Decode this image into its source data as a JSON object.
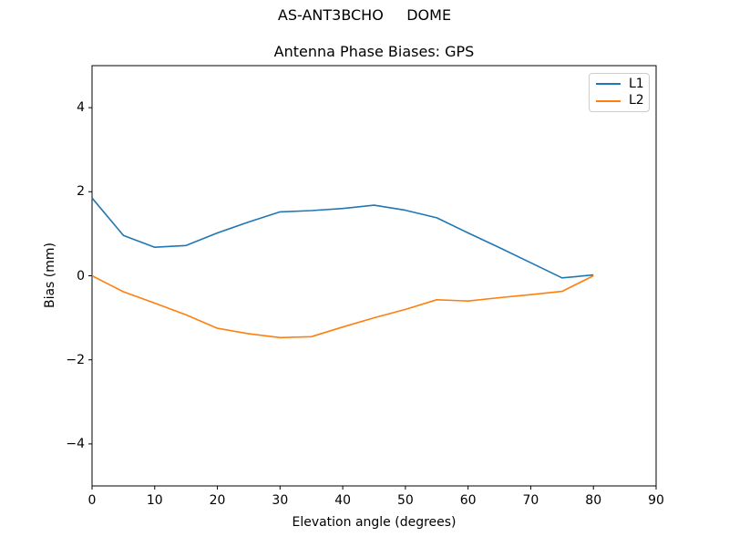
{
  "chart_data": {
    "type": "line",
    "suptitle": "AS-ANT3BCHO     DOME",
    "title": "Antenna Phase Biases: GPS",
    "xlabel": "Elevation angle (degrees)",
    "ylabel": "Bias (mm)",
    "xlim": [
      0,
      90
    ],
    "ylim": [
      -5,
      5
    ],
    "grid": false,
    "legend_position": "upper right",
    "frame_color": "#000000",
    "x": [
      0,
      5,
      10,
      15,
      20,
      25,
      30,
      35,
      40,
      45,
      50,
      55,
      60,
      65,
      70,
      75,
      80
    ],
    "series": [
      {
        "name": "L1",
        "color": "#1f77b4",
        "values": [
          1.85,
          0.96,
          0.68,
          0.72,
          1.02,
          1.28,
          1.52,
          1.55,
          1.6,
          1.68,
          1.56,
          1.38,
          1.02,
          0.67,
          0.31,
          -0.05,
          0.02
        ]
      },
      {
        "name": "L2",
        "color": "#ff7f0e",
        "values": [
          0.0,
          -0.38,
          -0.65,
          -0.93,
          -1.25,
          -1.38,
          -1.47,
          -1.45,
          -1.22,
          -1.0,
          -0.8,
          -0.57,
          -0.6,
          -0.52,
          -0.45,
          -0.37,
          0.0
        ]
      }
    ],
    "xticks": [
      {
        "value": 0,
        "label": "0"
      },
      {
        "value": 10,
        "label": "10"
      },
      {
        "value": 20,
        "label": "20"
      },
      {
        "value": 30,
        "label": "30"
      },
      {
        "value": 40,
        "label": "40"
      },
      {
        "value": 50,
        "label": "50"
      },
      {
        "value": 60,
        "label": "60"
      },
      {
        "value": 70,
        "label": "70"
      },
      {
        "value": 80,
        "label": "80"
      },
      {
        "value": 90,
        "label": "90"
      }
    ],
    "yticks": [
      {
        "value": -4,
        "label": "−4"
      },
      {
        "value": -2,
        "label": "−2"
      },
      {
        "value": 0,
        "label": "0"
      },
      {
        "value": 2,
        "label": "2"
      },
      {
        "value": 4,
        "label": "4"
      }
    ]
  }
}
